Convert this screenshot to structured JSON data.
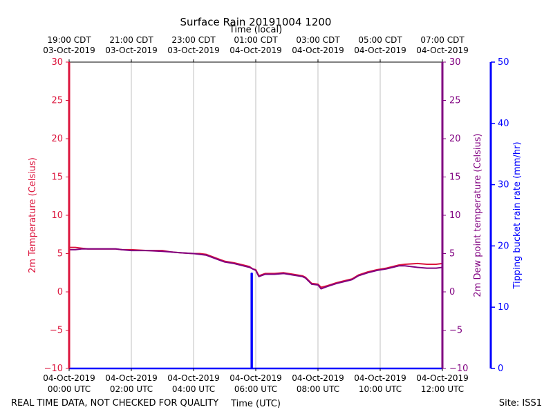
{
  "chart_data": {
    "type": "line",
    "title": "Surface Rain 20191004 1200",
    "top_axis_label": "Time (local)",
    "xlabel": "Time (UTC)",
    "ylabel_left": "2m Temperature (Celsius)",
    "ylabel_right": "2m Dew point temperature (Celsius)",
    "ylabel_right2": "Tipping bucket rain rate (mm/hr)",
    "x_range_hours": [
      0,
      12
    ],
    "y_range_temp": [
      -10,
      30
    ],
    "y_range_rain": [
      0,
      50
    ],
    "temp_ticks": [
      "30",
      "25",
      "20",
      "15",
      "10",
      "5",
      "0",
      "−5",
      "−10"
    ],
    "rain_ticks": [
      "50",
      "40",
      "30",
      "20",
      "10",
      "0"
    ],
    "utc_ticks": [
      {
        "date": "04-Oct-2019",
        "time": "00:00 UTC"
      },
      {
        "date": "04-Oct-2019",
        "time": "02:00 UTC"
      },
      {
        "date": "04-Oct-2019",
        "time": "04:00 UTC"
      },
      {
        "date": "04-Oct-2019",
        "time": "06:00 UTC"
      },
      {
        "date": "04-Oct-2019",
        "time": "08:00 UTC"
      },
      {
        "date": "04-Oct-2019",
        "time": "10:00 UTC"
      },
      {
        "date": "04-Oct-2019",
        "time": "12:00 UTC"
      }
    ],
    "local_ticks": [
      {
        "time": "19:00 CDT",
        "date": "03-Oct-2019"
      },
      {
        "time": "21:00 CDT",
        "date": "03-Oct-2019"
      },
      {
        "time": "23:00 CDT",
        "date": "03-Oct-2019"
      },
      {
        "time": "01:00 CDT",
        "date": "04-Oct-2019"
      },
      {
        "time": "03:00 CDT",
        "date": "04-Oct-2019"
      },
      {
        "time": "05:00 CDT",
        "date": "04-Oct-2019"
      },
      {
        "time": "07:00 CDT",
        "date": "04-Oct-2019"
      }
    ],
    "series": [
      {
        "name": "2m Temperature",
        "color": "#dc143c",
        "x": [
          0,
          0.2,
          0.4,
          0.6,
          1.0,
          1.5,
          1.7,
          2.0,
          2.5,
          3.0,
          3.3,
          3.6,
          4.0,
          4.2,
          4.4,
          4.6,
          4.8,
          5.0,
          5.3,
          5.6,
          5.8,
          5.9,
          6.0,
          6.1,
          6.3,
          6.6,
          6.9,
          7.2,
          7.5,
          7.6,
          7.8,
          8.0,
          8.1,
          8.3,
          8.6,
          8.9,
          9.1,
          9.3,
          9.6,
          9.9,
          10.2,
          10.4,
          10.6,
          10.8,
          11.2,
          11.5,
          11.8,
          12.0
        ],
        "values": [
          5.8,
          5.8,
          5.7,
          5.6,
          5.6,
          5.6,
          5.5,
          5.5,
          5.4,
          5.4,
          5.2,
          5.1,
          5.0,
          5.0,
          4.9,
          4.6,
          4.3,
          4.0,
          3.8,
          3.5,
          3.3,
          3.0,
          2.9,
          2.1,
          2.4,
          2.4,
          2.5,
          2.3,
          2.1,
          1.9,
          1.1,
          1.0,
          0.6,
          0.8,
          1.2,
          1.5,
          1.7,
          2.2,
          2.6,
          2.9,
          3.1,
          3.3,
          3.5,
          3.6,
          3.7,
          3.6,
          3.6,
          3.7
        ]
      },
      {
        "name": "2m Dew point temperature",
        "color": "#800080",
        "x": [
          0,
          0.2,
          0.4,
          0.6,
          1.0,
          1.5,
          1.7,
          2.0,
          2.5,
          3.0,
          3.3,
          3.6,
          4.0,
          4.2,
          4.4,
          4.6,
          4.8,
          5.0,
          5.3,
          5.6,
          5.8,
          5.9,
          6.0,
          6.1,
          6.3,
          6.6,
          6.9,
          7.2,
          7.5,
          7.6,
          7.8,
          8.0,
          8.1,
          8.3,
          8.6,
          8.9,
          9.1,
          9.3,
          9.6,
          9.9,
          10.2,
          10.4,
          10.6,
          10.8,
          11.2,
          11.5,
          11.8,
          12.0
        ],
        "values": [
          5.5,
          5.5,
          5.6,
          5.6,
          5.6,
          5.6,
          5.5,
          5.4,
          5.4,
          5.3,
          5.2,
          5.1,
          5.0,
          4.9,
          4.8,
          4.5,
          4.2,
          3.9,
          3.7,
          3.4,
          3.2,
          3.0,
          2.8,
          2.0,
          2.3,
          2.3,
          2.4,
          2.2,
          2.0,
          1.8,
          1.0,
          0.9,
          0.4,
          0.7,
          1.1,
          1.4,
          1.6,
          2.1,
          2.5,
          2.8,
          3.0,
          3.2,
          3.4,
          3.4,
          3.2,
          3.1,
          3.1,
          3.2
        ]
      },
      {
        "name": "Tipping bucket rain rate",
        "color": "#0000ff",
        "x": [
          0,
          5.86,
          5.86,
          5.88,
          5.88,
          12.0
        ],
        "values": [
          0,
          0,
          15.5,
          15.5,
          0,
          0
        ]
      }
    ]
  },
  "footer": {
    "disclaimer": "REAL TIME DATA, NOT CHECKED FOR QUALITY",
    "site": "Site: ISS1"
  }
}
